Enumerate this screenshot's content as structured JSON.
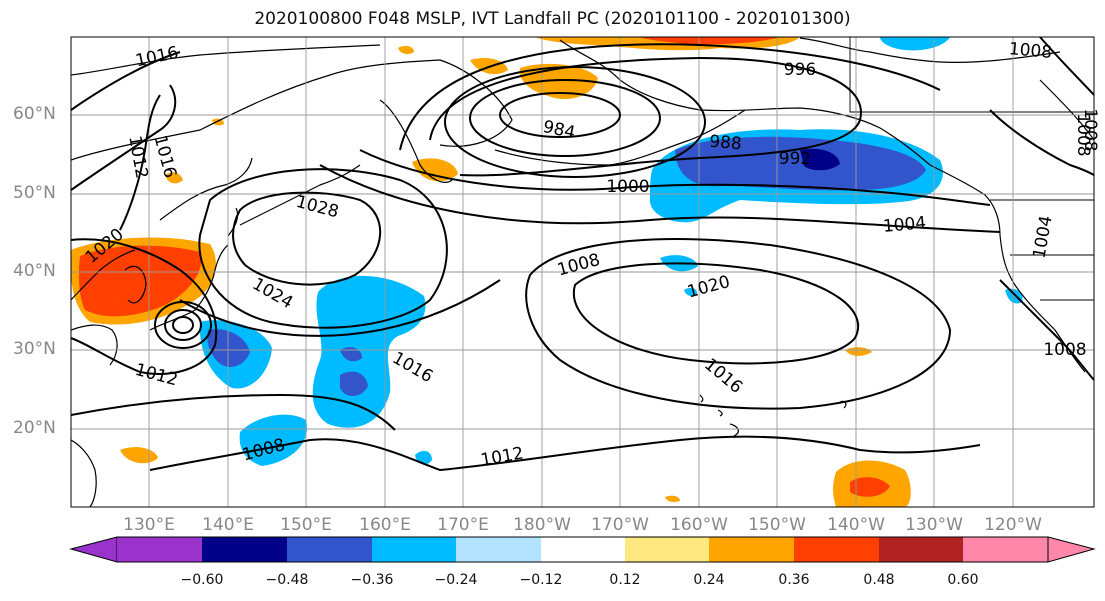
{
  "title": "2020100800 F048 MSLP, IVT Landfall PC (2020101100 - 2020101300)",
  "lat_labels": [
    "60°N",
    "50°N",
    "40°N",
    "30°N",
    "20°N"
  ],
  "lon_labels": [
    "130°E",
    "140°E",
    "150°E",
    "160°E",
    "170°E",
    "180°W",
    "170°W",
    "160°W",
    "150°W",
    "140°W",
    "130°W",
    "120°W"
  ],
  "contour_labels": [
    "1016",
    "1016",
    "1012",
    "1020",
    "1028",
    "1024",
    "1012",
    "1008",
    "984",
    "988",
    "992",
    "996",
    "1000",
    "1004",
    "1008",
    "1020",
    "1016",
    "1016",
    "1012",
    "1008",
    "1008",
    "1004",
    "1008",
    "1008"
  ],
  "colorbar": {
    "colors": [
      "#9933cc",
      "#000088",
      "#3355cc",
      "#00bbff",
      "#b3e3ff",
      "#ffffff",
      "#ffe880",
      "#ffa500",
      "#ff4000",
      "#b22222",
      "#ff88aa"
    ],
    "tick_labels": [
      "−0.60",
      "−0.48",
      "−0.36",
      "−0.24",
      "−0.12",
      "0.12",
      "0.24",
      "0.36",
      "0.48",
      "0.60"
    ]
  }
}
